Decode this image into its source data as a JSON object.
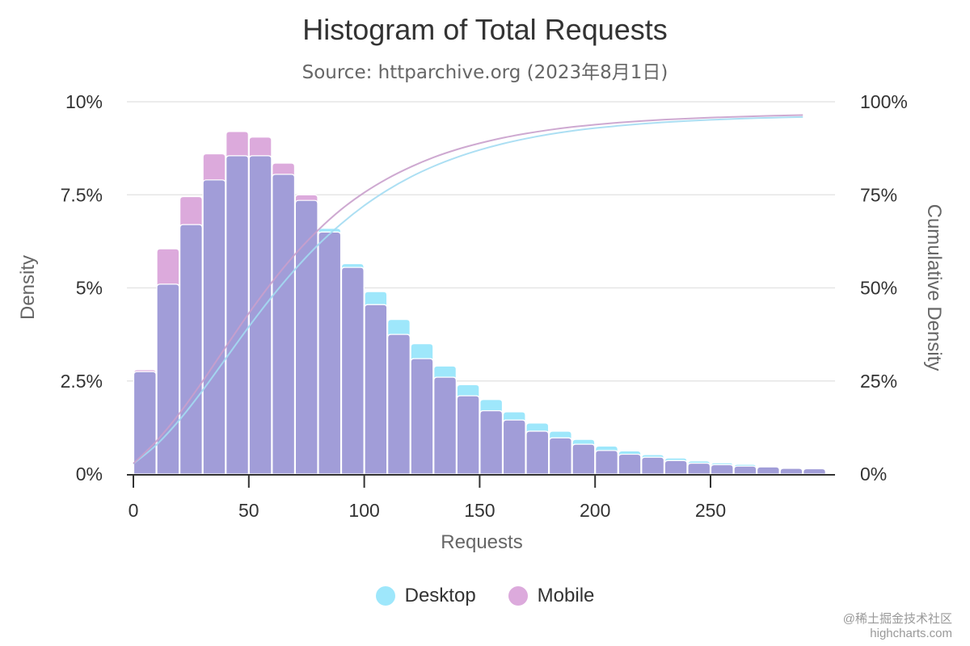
{
  "title": "Histogram of Total Requests",
  "subtitle": "Source: httparchive.org (2023年8月1日)",
  "credit": {
    "watermark": "@稀土掘金技术社区",
    "link": "highcharts.com"
  },
  "colors": {
    "desktop": "#9ee7fb",
    "mobile": "#dcaadc",
    "overlap": "#a19dd8",
    "desktop_line": "#a3dcf2",
    "mobile_line": "#c9a0cc"
  },
  "chart_data": {
    "type": "bar",
    "xlabel": "Requests",
    "ylabel": "Density",
    "y2label": "Cumulative Density",
    "xlim": [
      0,
      300
    ],
    "ylim": [
      0,
      10
    ],
    "y2lim": [
      0,
      100
    ],
    "bin_width": 10,
    "grid": true,
    "legend": "bottom-center",
    "x_ticks": [
      "0",
      "50",
      "100",
      "150",
      "200",
      "250"
    ],
    "y_ticks": [
      "0%",
      "2.5%",
      "5%",
      "7.5%",
      "10%"
    ],
    "y2_ticks": [
      "0%",
      "25%",
      "50%",
      "75%",
      "100%"
    ],
    "bins": [
      0,
      10,
      20,
      30,
      40,
      50,
      60,
      70,
      80,
      90,
      100,
      110,
      120,
      130,
      140,
      150,
      160,
      170,
      180,
      190,
      200,
      210,
      220,
      230,
      240,
      250,
      260,
      270,
      280,
      290
    ],
    "series": [
      {
        "name": "Desktop",
        "type": "histogram",
        "values": [
          2.75,
          5.1,
          6.7,
          7.9,
          8.55,
          8.55,
          8.05,
          7.35,
          6.6,
          5.65,
          4.9,
          4.15,
          3.5,
          2.9,
          2.4,
          2.0,
          1.67,
          1.37,
          1.15,
          0.93,
          0.75,
          0.62,
          0.52,
          0.43,
          0.35,
          0.3,
          0.26,
          0.2,
          0.16,
          0.15
        ],
        "cumulative": [
          2.75,
          7.85,
          14.55,
          22.45,
          31,
          39.55,
          47.6,
          54.95,
          61.55,
          67.2,
          72.1,
          76.25,
          79.75,
          82.65,
          85.05,
          87.05,
          88.72,
          90.09,
          91.24,
          92.17,
          92.92,
          93.54,
          94.06,
          94.49,
          94.84,
          95.14,
          95.4,
          95.6,
          95.76,
          95.91
        ]
      },
      {
        "name": "Mobile",
        "type": "histogram",
        "values": [
          2.8,
          6.05,
          7.45,
          8.6,
          9.2,
          9.05,
          8.35,
          7.5,
          6.5,
          5.55,
          4.55,
          3.75,
          3.1,
          2.6,
          2.1,
          1.7,
          1.45,
          1.15,
          0.97,
          0.8,
          0.63,
          0.53,
          0.45,
          0.36,
          0.29,
          0.25,
          0.21,
          0.19,
          0.15,
          0.14
        ],
        "cumulative": [
          2.8,
          8.85,
          16.3,
          24.9,
          34.1,
          43.15,
          51.5,
          59,
          65.5,
          71.05,
          75.6,
          79.35,
          82.45,
          85.05,
          87.15,
          88.85,
          90.3,
          91.45,
          92.42,
          93.22,
          93.85,
          94.38,
          94.83,
          95.19,
          95.48,
          95.73,
          95.94,
          96.13,
          96.28,
          96.42
        ]
      }
    ]
  }
}
